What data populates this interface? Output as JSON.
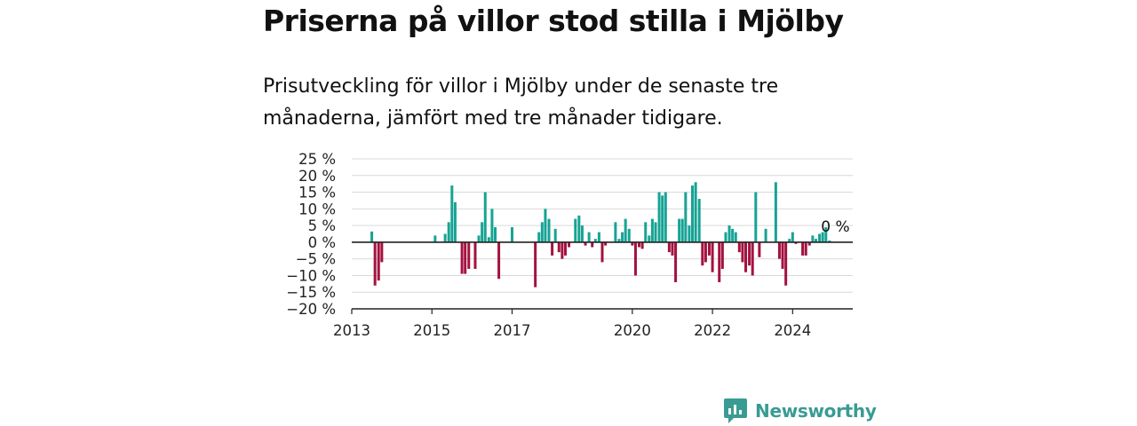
{
  "title": "Priserna på villor stod stilla i Mjölby",
  "subtitle": "Prisutveckling för villor i Mjölby under de senaste tre månaderna, jämfört med tre månader tidigare.",
  "brand": {
    "name": "Newsworthy",
    "icon": "newsworthy-logo-icon",
    "color": "#3a9b93"
  },
  "colors": {
    "positive": "#16a394",
    "negative": "#a3123f",
    "grid": "#d9d9d9",
    "axis": "#222222"
  },
  "chart_data": {
    "type": "bar",
    "title": "Priserna på villor stod stilla i Mjölby",
    "subtitle": "Prisutveckling för villor i Mjölby under de senaste tre månaderna, jämfört med tre månader tidigare.",
    "xlabel": "",
    "ylabel": "",
    "ylim": [
      -20,
      25
    ],
    "y_ticks": [
      25,
      20,
      15,
      10,
      5,
      0,
      -5,
      -10,
      -15,
      -20
    ],
    "y_tick_labels": [
      "25 %",
      "20 %",
      "15 %",
      "10 %",
      "5 %",
      "0 %",
      "−5 %",
      "−10 %",
      "−15 %",
      "−20 %"
    ],
    "xlim": [
      2013.0,
      2025.5
    ],
    "x_ticks": [
      2013,
      2015,
      2017,
      2020,
      2022,
      2024
    ],
    "x_tick_labels": [
      "2013",
      "2015",
      "2017",
      "2020",
      "2022",
      "2024"
    ],
    "grid": true,
    "legend": "none",
    "annotation": {
      "text": "0 %",
      "x": 2025.2,
      "y": 0
    },
    "x": [
      2013.5,
      2013.58,
      2013.67,
      2013.75,
      2015.08,
      2015.33,
      2015.42,
      2015.5,
      2015.58,
      2015.75,
      2015.83,
      2015.92,
      2016.08,
      2016.17,
      2016.25,
      2016.33,
      2016.42,
      2016.5,
      2016.58,
      2016.67,
      2017.0,
      2017.58,
      2017.67,
      2017.75,
      2017.83,
      2017.92,
      2018.0,
      2018.08,
      2018.17,
      2018.25,
      2018.33,
      2018.42,
      2018.58,
      2018.67,
      2018.75,
      2018.83,
      2018.92,
      2019.0,
      2019.08,
      2019.17,
      2019.25,
      2019.33,
      2019.58,
      2019.67,
      2019.75,
      2019.83,
      2019.92,
      2020.0,
      2020.08,
      2020.17,
      2020.25,
      2020.33,
      2020.42,
      2020.5,
      2020.58,
      2020.67,
      2020.75,
      2020.83,
      2020.92,
      2021.0,
      2021.08,
      2021.17,
      2021.25,
      2021.33,
      2021.42,
      2021.5,
      2021.58,
      2021.67,
      2021.75,
      2021.83,
      2021.92,
      2022.0,
      2022.17,
      2022.25,
      2022.33,
      2022.42,
      2022.5,
      2022.58,
      2022.67,
      2022.75,
      2022.83,
      2022.92,
      2023.0,
      2023.08,
      2023.17,
      2023.33,
      2023.58,
      2023.67,
      2023.75,
      2023.83,
      2023.92,
      2024.0,
      2024.08,
      2024.25,
      2024.33,
      2024.42,
      2024.5,
      2024.58,
      2024.67,
      2024.75,
      2024.83,
      2024.92,
      2025.0
    ],
    "values": [
      3.2,
      -13,
      -11.5,
      -6,
      2,
      2.5,
      6,
      17,
      12,
      -9.5,
      -9.5,
      -8,
      -8,
      2,
      6,
      15,
      1.5,
      10,
      4.5,
      -11,
      4.5,
      -13.5,
      3,
      6,
      10,
      7,
      -4,
      4,
      -3,
      -5,
      -4,
      -1.5,
      7,
      8,
      5,
      -1,
      3,
      -1.5,
      1,
      3,
      -6,
      -1,
      6,
      1,
      3,
      7,
      4,
      -1,
      -10,
      -1.5,
      -2,
      6,
      2,
      7,
      6,
      15,
      14,
      15,
      -3,
      -4,
      -12,
      7,
      7,
      15,
      5,
      17,
      18,
      13,
      -7,
      -6,
      -4,
      -9,
      -12,
      -8,
      3,
      5,
      4,
      3,
      -3,
      -6,
      -9,
      -7,
      -10,
      15,
      -4.5,
      4,
      18,
      -5,
      -8,
      -13,
      1,
      3,
      -0.5,
      -4,
      -4,
      -1,
      2,
      1,
      2.5,
      3,
      4.5,
      0.5,
      0
    ]
  }
}
